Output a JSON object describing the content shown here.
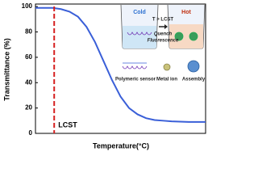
{
  "chart_data": {
    "type": "line",
    "y_label": "Transmittance (%)",
    "x_label": "Temperature(°C)",
    "x": [
      0,
      5,
      10,
      15,
      20,
      25,
      30,
      35,
      40,
      45,
      50,
      55,
      60,
      65,
      70,
      75,
      80,
      90,
      100
    ],
    "series": [
      {
        "color": "#3a5fd8",
        "values": [
          99,
          99,
          99,
          98,
          96,
          92,
          84,
          72,
          57,
          42,
          29,
          20,
          15,
          12,
          10.5,
          10,
          9.5,
          9,
          9
        ]
      }
    ],
    "xlim": [
      0,
      100
    ],
    "ylim": [
      0,
      102
    ],
    "yticks": [
      0,
      20,
      40,
      60,
      80,
      100
    ],
    "marker_line": {
      "x": 11,
      "label": "LCST",
      "color": "#d62020"
    },
    "illustration": {
      "cold": "Cold",
      "hot": "Hot",
      "arrow": "T > LCST",
      "quench": "Quench",
      "fluorescence": "Fluorescence",
      "sensor": "Polymeric sensor",
      "ion": "Metal ion",
      "assembly": "Assembly"
    }
  }
}
